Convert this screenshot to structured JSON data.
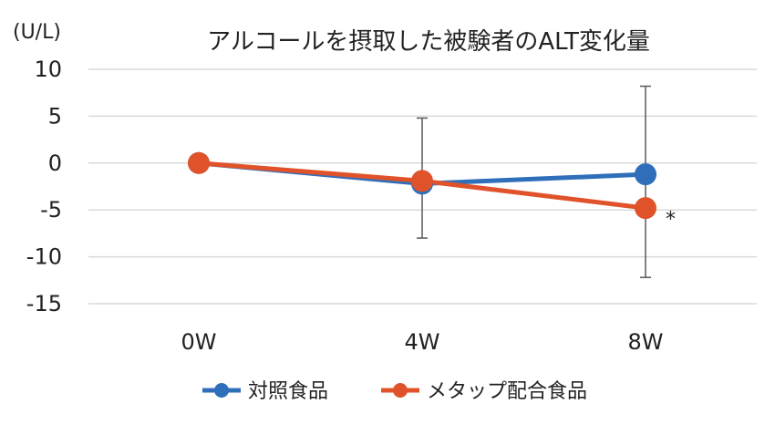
{
  "chart_data": {
    "type": "line",
    "title": "アルコールを摂取した被験者のALT変化量",
    "unit_label": "(U/L)",
    "xlabel": "",
    "ylabel": "",
    "categories": [
      "0W",
      "4W",
      "8W"
    ],
    "ylim": [
      -15,
      10
    ],
    "yticks": [
      10,
      5,
      0,
      -5,
      -10,
      -15
    ],
    "ytick_labels": [
      "10",
      "5",
      "0",
      "-5",
      "-10",
      "-15"
    ],
    "grid": true,
    "legend_position": "bottom",
    "series": [
      {
        "name": "対照食品",
        "color": "#2f6fba",
        "values": [
          0,
          -2.2,
          -1.2
        ],
        "error_bars": [
          null,
          null,
          [
            -12.2,
            8.2
          ]
        ]
      },
      {
        "name": "メタップ配合食品",
        "color": "#e0532a",
        "values": [
          0,
          -1.9,
          -4.8
        ],
        "error_bars": [
          null,
          [
            -8.0,
            4.8
          ],
          null
        ]
      }
    ],
    "annotations": [
      {
        "text": "*",
        "category": "8W",
        "value": -5.3
      }
    ]
  }
}
